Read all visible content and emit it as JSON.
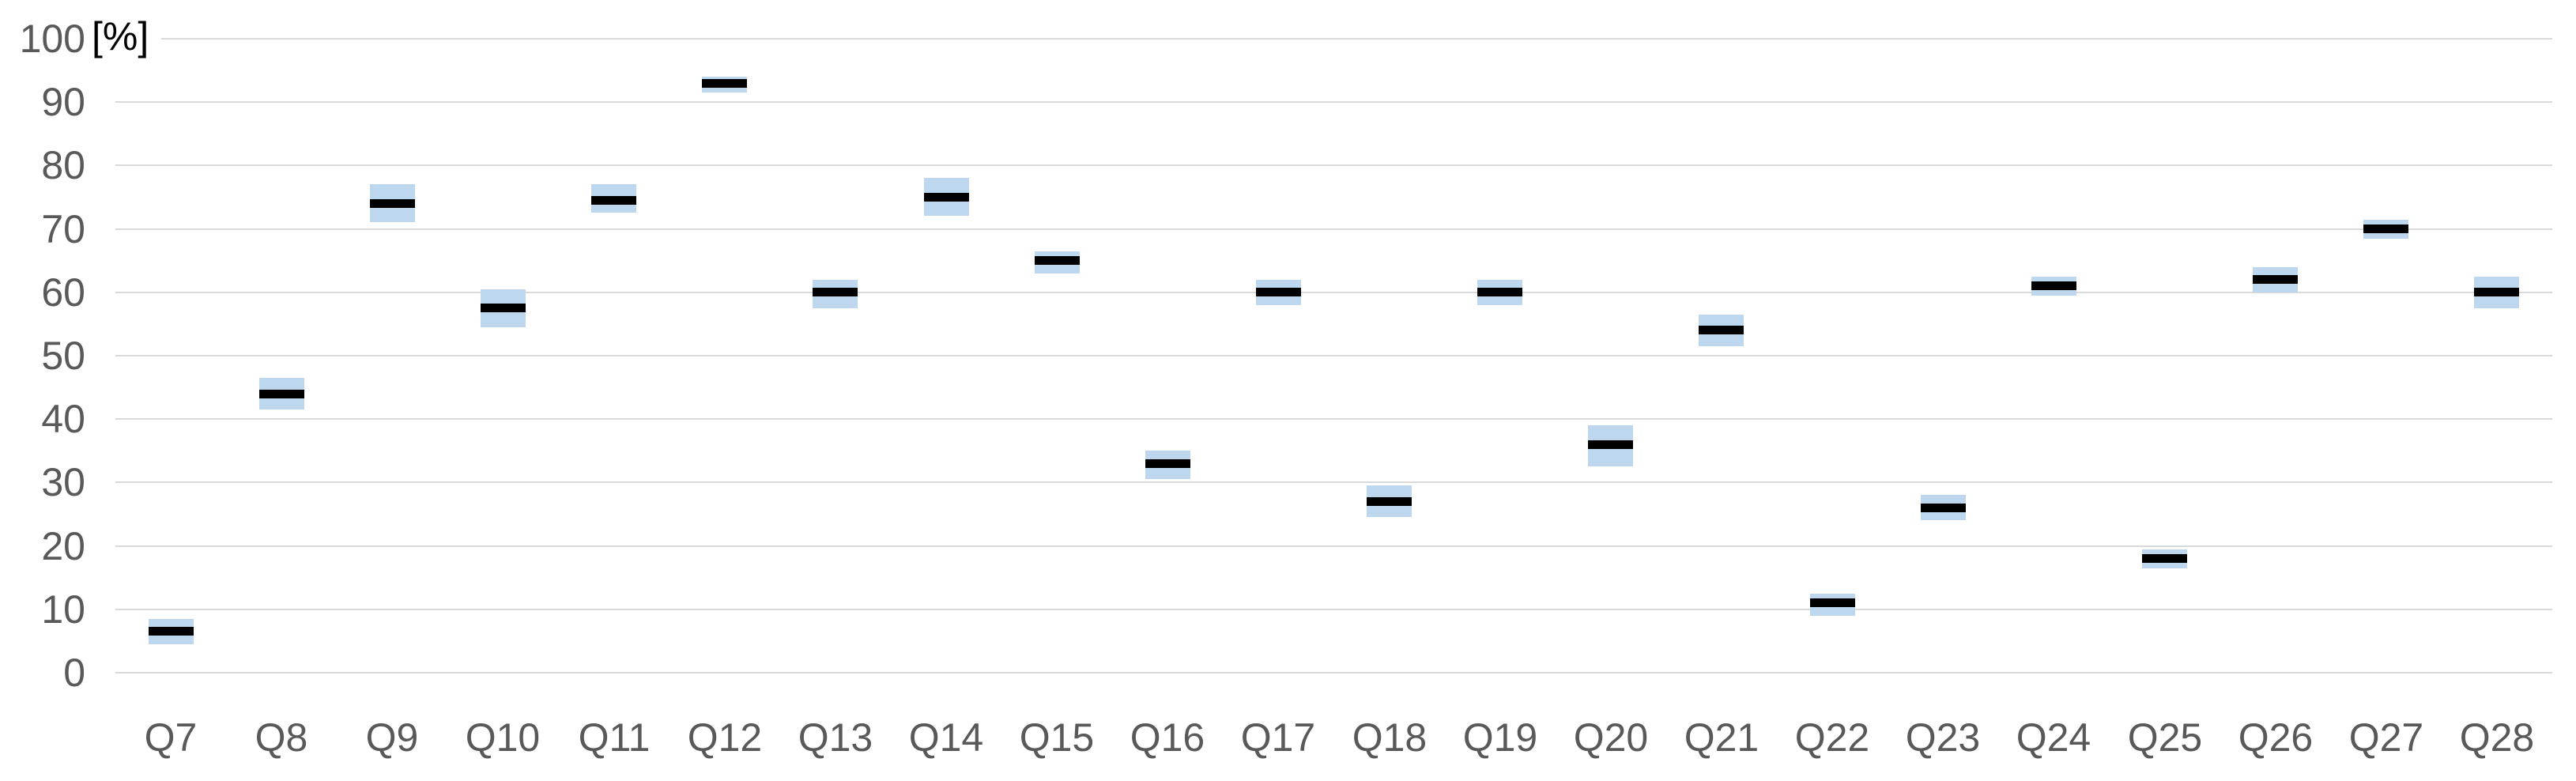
{
  "chart_data": {
    "type": "boxplot",
    "title": "",
    "y_axis_label": "[%]",
    "xlabel": "",
    "ylabel": "[%]",
    "ylim": [
      0,
      100
    ],
    "y_tick_step": 10,
    "y_tick_labels": [
      "0",
      "10",
      "20",
      "30",
      "40",
      "50",
      "60",
      "70",
      "80",
      "90",
      "100"
    ],
    "grid": true,
    "legend": false,
    "categories": [
      "Q7",
      "Q8",
      "Q9",
      "Q10",
      "Q11",
      "Q12",
      "Q13",
      "Q14",
      "Q15",
      "Q16",
      "Q17",
      "Q18",
      "Q19",
      "Q20",
      "Q21",
      "Q22",
      "Q23",
      "Q24",
      "Q25",
      "Q26",
      "Q27",
      "Q28"
    ],
    "series": [
      {
        "name": "range-box",
        "type": "box",
        "color": "#bdd7ee",
        "low": [
          4.5,
          41.5,
          71,
          54.5,
          72.5,
          91.5,
          57.5,
          72,
          63,
          30.5,
          58,
          24.5,
          58,
          32.5,
          51.5,
          9,
          24,
          59.5,
          16.5,
          60,
          68.5,
          57.5
        ],
        "high": [
          8.5,
          46.5,
          77,
          60.5,
          77,
          94,
          62,
          78,
          66.5,
          35,
          62,
          29.5,
          62,
          39,
          56.5,
          12.5,
          28,
          62.5,
          19.5,
          64,
          71.5,
          62.5
        ]
      },
      {
        "name": "value-dash",
        "type": "dash",
        "color": "#000000",
        "values": [
          6.5,
          44,
          74,
          57.5,
          74.5,
          93,
          60,
          75,
          65,
          33,
          60,
          27,
          60,
          36,
          54,
          11,
          26,
          61,
          18,
          62,
          70,
          60
        ]
      }
    ],
    "colors": {
      "box": "#bdd7ee",
      "dash": "#000000",
      "gridline": "#d9d9d9",
      "tick_label": "#595959",
      "axis_title": "#000000",
      "background": "#ffffff"
    }
  }
}
